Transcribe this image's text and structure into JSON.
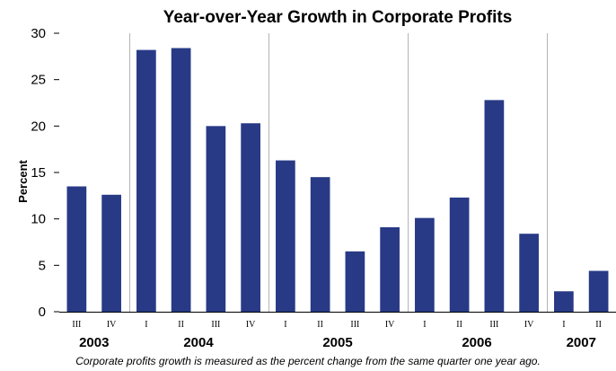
{
  "chart_data": {
    "type": "bar",
    "title": "Year-over-Year Growth in Corporate Profits",
    "ylabel": "Percent",
    "xlabel": "",
    "ylim": [
      0,
      30
    ],
    "yticks": [
      0,
      5,
      10,
      15,
      20,
      25,
      30
    ],
    "grid": false,
    "categories": [
      "III",
      "IV",
      "I",
      "II",
      "III",
      "IV",
      "I",
      "II",
      "III",
      "IV",
      "I",
      "II",
      "III",
      "IV",
      "I",
      "II"
    ],
    "values": [
      13.5,
      12.6,
      28.2,
      28.4,
      20.0,
      20.3,
      16.3,
      14.5,
      6.5,
      9.1,
      10.1,
      12.3,
      22.8,
      8.4,
      2.2,
      4.4
    ],
    "year_groups": [
      {
        "label": "2003",
        "start": 0,
        "count": 2
      },
      {
        "label": "2004",
        "start": 2,
        "count": 4
      },
      {
        "label": "2005",
        "start": 6,
        "count": 4
      },
      {
        "label": "2006",
        "start": 10,
        "count": 4
      },
      {
        "label": "2007",
        "start": 14,
        "count": 2
      }
    ],
    "bar_color": "#283A86",
    "note": "Corporate profits growth is measured as the percent change from the same quarter one year ago."
  }
}
